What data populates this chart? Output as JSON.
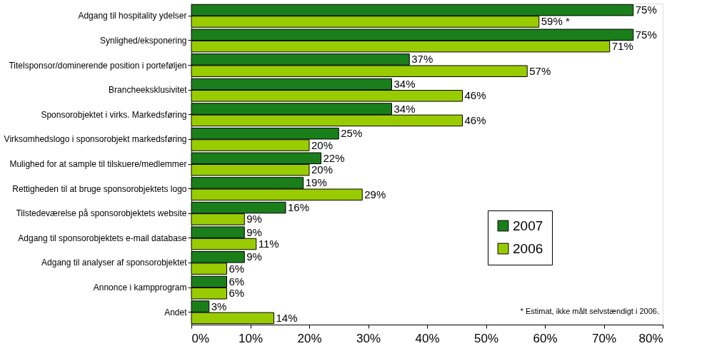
{
  "chart_data": {
    "type": "bar",
    "orientation": "horizontal",
    "categories": [
      "Adgang til hospitality ydelser",
      "Synlighed/eksponering",
      "Titelsponsor/dominerende position i porteføljen",
      "Brancheeksklusivitet",
      "Sponsorobjektet i virks. Markedsføring",
      "Virksomhedslogo i sponsorobjekt markedsføring",
      "Mulighed for at sample til tilskuere/medlemmer",
      "Rettigheden til at bruge sponsorobjektets logo",
      "Tilstedeværelse på sponsorobjektets website",
      "Adgang til sponsorobjektets e-mail database",
      "Adgang til analyser af sponsorobjektet",
      "Annonce i kampprogram",
      "Andet"
    ],
    "series": [
      {
        "name": "2007",
        "color": "#1a7f1a",
        "values": [
          75,
          75,
          37,
          34,
          34,
          25,
          22,
          19,
          16,
          9,
          9,
          6,
          3
        ],
        "value_labels": [
          "75%",
          "75%",
          "37%",
          "34%",
          "34%",
          "25%",
          "22%",
          "19%",
          "16%",
          "9%",
          "9%",
          "6%",
          "3%"
        ]
      },
      {
        "name": "2006",
        "color": "#99cc00",
        "values": [
          59,
          71,
          57,
          46,
          46,
          20,
          20,
          29,
          9,
          11,
          6,
          6,
          14
        ],
        "value_labels": [
          "59% *",
          "71%",
          "57%",
          "46%",
          "46%",
          "20%",
          "20%",
          "29%",
          "9%",
          "11%",
          "6%",
          "6%",
          "14%"
        ]
      }
    ],
    "xlim": [
      0,
      80
    ],
    "xticks": [
      {
        "value": 0,
        "label": "0%"
      },
      {
        "value": 10,
        "label": "10%"
      },
      {
        "value": 20,
        "label": "20%"
      },
      {
        "value": 30,
        "label": "30%"
      },
      {
        "value": 40,
        "label": "40%"
      },
      {
        "value": 50,
        "label": "50%"
      },
      {
        "value": 60,
        "label": "60%"
      },
      {
        "value": 70,
        "label": "70%"
      },
      {
        "value": 80,
        "label": "80%"
      }
    ],
    "grid": false,
    "legend": "bottom right",
    "annotations": [
      "* Estimat, ikke målt selvstændigt i 2006."
    ]
  }
}
